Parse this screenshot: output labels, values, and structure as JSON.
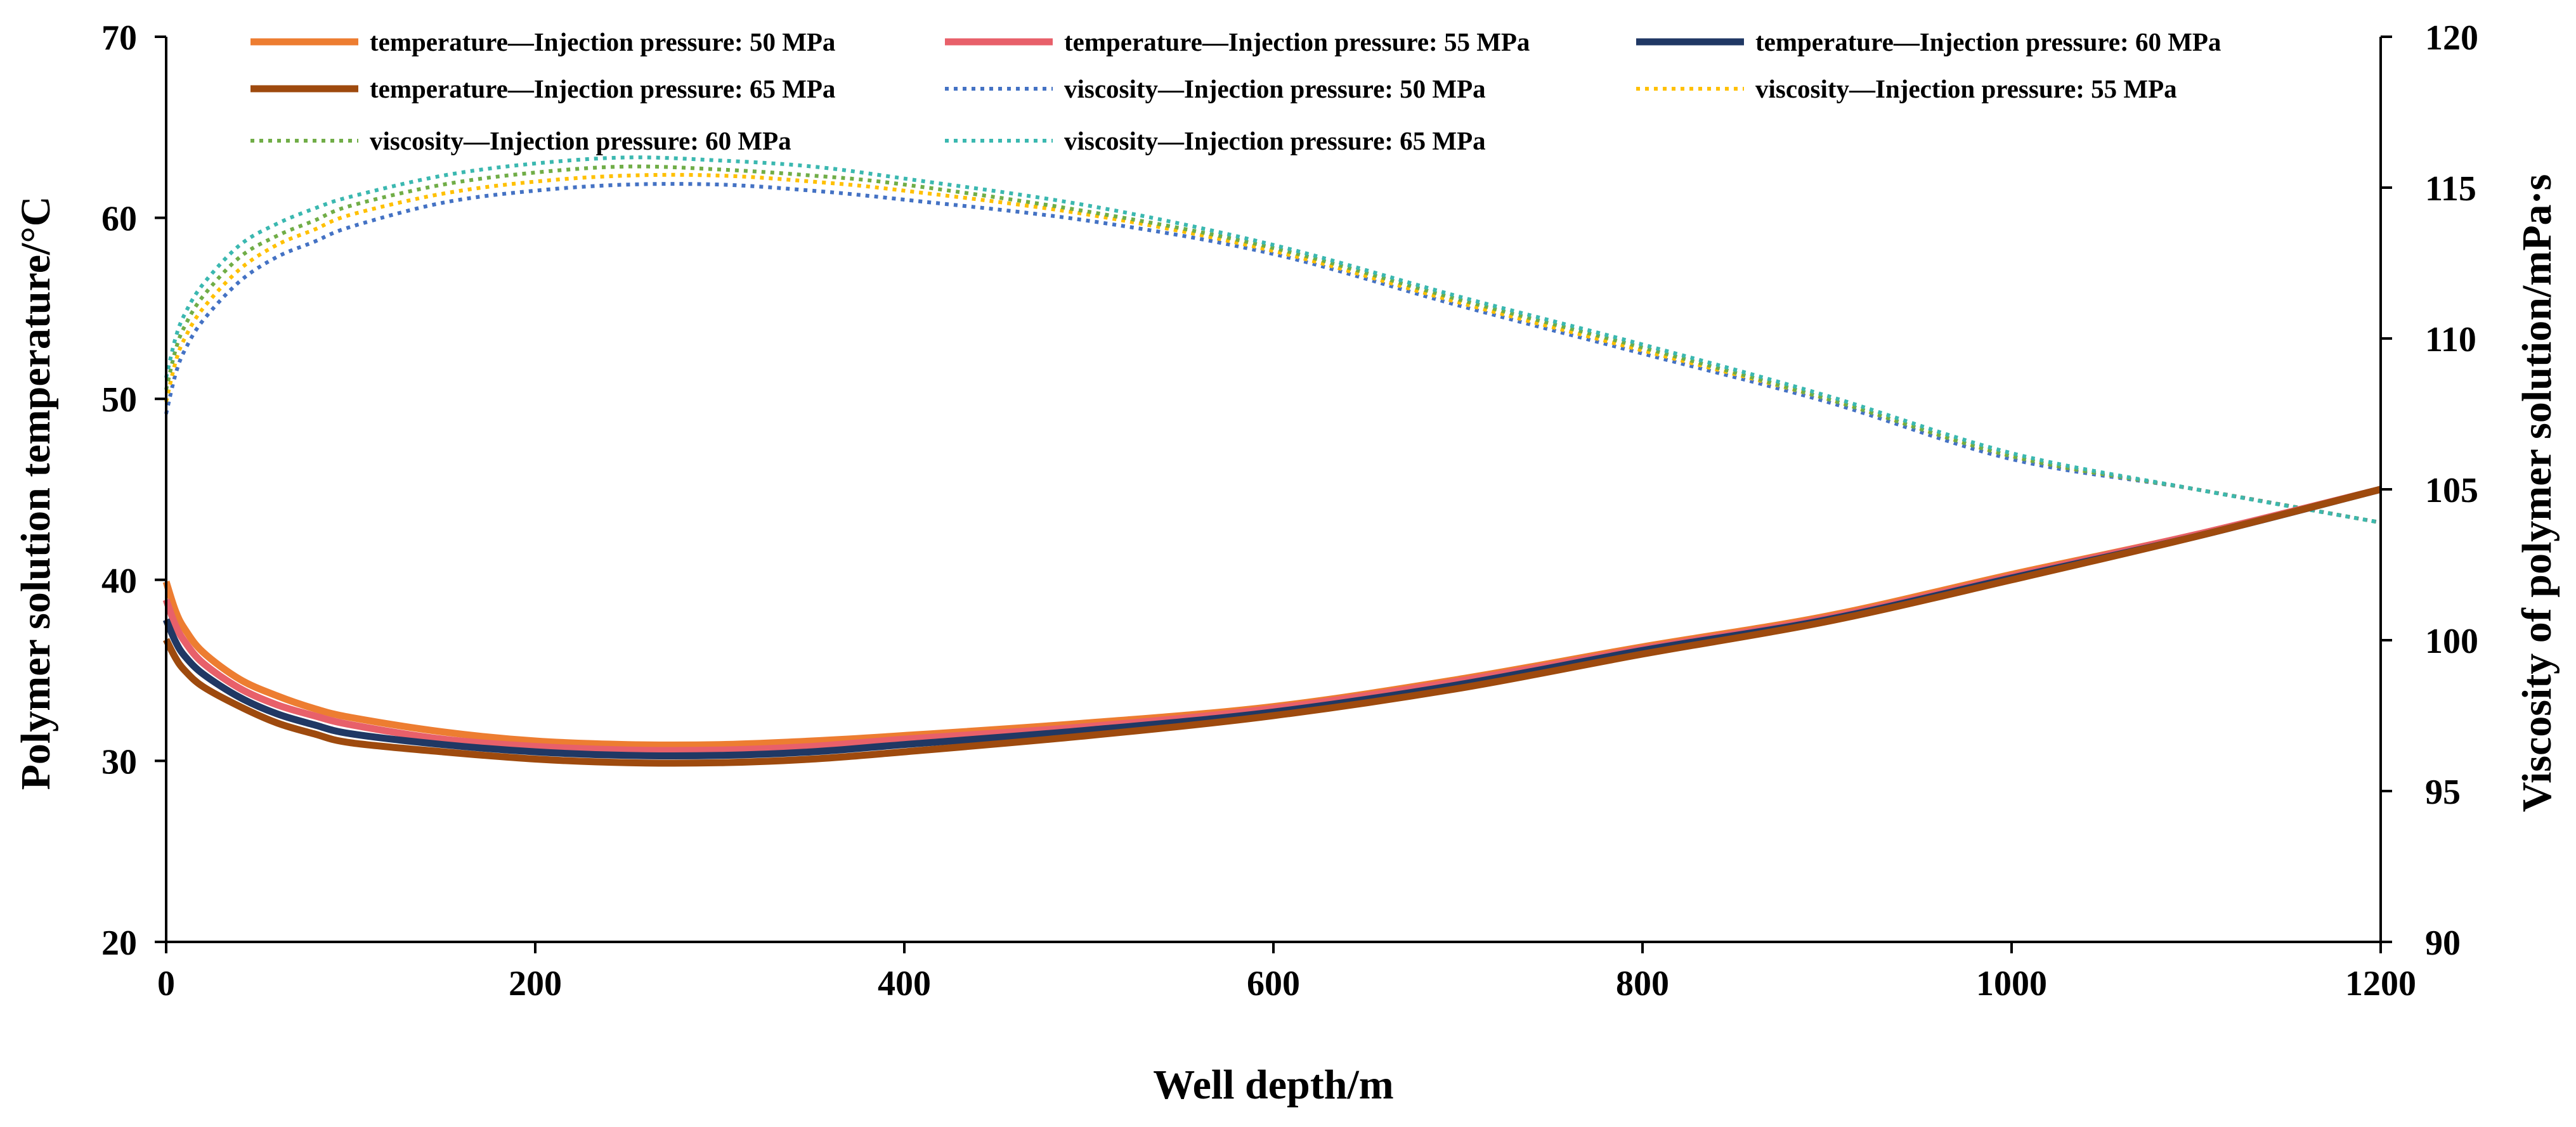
{
  "chart_data": {
    "type": "line",
    "title": "",
    "xlabel": "Well depth/m",
    "ylabel_left": "Polymer solution temperature/°C",
    "ylabel_right": "Viscosity of polymer solution/mPa·s",
    "xlim": [
      0,
      1200
    ],
    "ylim_left": [
      20,
      70
    ],
    "ylim_right": [
      90,
      120
    ],
    "x_ticks": [
      "0",
      "200",
      "400",
      "600",
      "800",
      "1000",
      "1200"
    ],
    "y_ticks_left": [
      "20",
      "30",
      "40",
      "50",
      "60",
      "70"
    ],
    "y_ticks_right": [
      "90",
      "95",
      "100",
      "105",
      "110",
      "115",
      "120"
    ],
    "grid": false,
    "legend_position": "top",
    "series": [
      {
        "name": "temperature—Injection pressure: 50 MPa",
        "axis": "left",
        "style": "solid",
        "color": "#ED7D31",
        "x": [
          0,
          5,
          10,
          20,
          40,
          60,
          80,
          100,
          150,
          200,
          250,
          300,
          350,
          400,
          500,
          600,
          700,
          800,
          900,
          1000,
          1100,
          1200
        ],
        "y": [
          39.9,
          38.3,
          37.3,
          36.0,
          34.5,
          33.6,
          32.9,
          32.4,
          31.6,
          31.1,
          30.9,
          30.9,
          31.1,
          31.4,
          32.1,
          33.0,
          34.5,
          36.3,
          38.0,
          40.3,
          42.5,
          45.0
        ]
      },
      {
        "name": "temperature—Injection pressure: 55 MPa",
        "axis": "left",
        "style": "solid",
        "color": "#E8606A",
        "x": [
          0,
          5,
          10,
          20,
          40,
          60,
          80,
          100,
          150,
          200,
          250,
          300,
          350,
          400,
          500,
          600,
          700,
          800,
          900,
          1000,
          1100,
          1200
        ],
        "y": [
          38.9,
          37.5,
          36.6,
          35.4,
          34.0,
          33.1,
          32.5,
          32.0,
          31.2,
          30.8,
          30.6,
          30.6,
          30.8,
          31.2,
          31.9,
          32.9,
          34.4,
          36.2,
          37.9,
          40.2,
          42.5,
          45.0
        ]
      },
      {
        "name": "temperature—Injection pressure: 60 MPa",
        "axis": "left",
        "style": "solid",
        "color": "#203864",
        "x": [
          0,
          5,
          10,
          20,
          40,
          60,
          80,
          100,
          150,
          200,
          250,
          300,
          350,
          400,
          500,
          600,
          700,
          800,
          900,
          1000,
          1100,
          1200
        ],
        "y": [
          37.8,
          36.6,
          35.8,
          34.8,
          33.5,
          32.6,
          32.0,
          31.5,
          30.9,
          30.5,
          30.3,
          30.3,
          30.5,
          30.9,
          31.7,
          32.7,
          34.2,
          36.1,
          37.8,
          40.1,
          42.4,
          45.0
        ]
      },
      {
        "name": "temperature—Injection pressure: 65 MPa",
        "axis": "left",
        "style": "solid",
        "color": "#9E4A0E",
        "x": [
          0,
          5,
          10,
          20,
          40,
          60,
          80,
          100,
          150,
          200,
          250,
          300,
          350,
          400,
          500,
          600,
          700,
          800,
          900,
          1000,
          1100,
          1200
        ],
        "y": [
          36.7,
          35.7,
          35.0,
          34.1,
          33.0,
          32.1,
          31.5,
          31.0,
          30.5,
          30.1,
          29.9,
          29.9,
          30.1,
          30.5,
          31.4,
          32.5,
          34.0,
          35.9,
          37.7,
          40.0,
          42.4,
          45.0
        ]
      },
      {
        "name": "viscosity—Injection pressure: 50 MPa",
        "axis": "right",
        "style": "dotted",
        "color": "#4472C4",
        "x": [
          0,
          5,
          10,
          20,
          40,
          60,
          80,
          100,
          150,
          200,
          250,
          300,
          350,
          400,
          500,
          600,
          700,
          800,
          900,
          1000,
          1100,
          1200
        ],
        "y": [
          107.5,
          108.8,
          109.6,
          110.6,
          111.9,
          112.7,
          113.2,
          113.7,
          114.5,
          114.9,
          115.1,
          115.1,
          114.9,
          114.6,
          113.9,
          112.8,
          111.1,
          109.5,
          107.9,
          106.0,
          105.0,
          103.9
        ]
      },
      {
        "name": "viscosity—Injection pressure: 55 MPa",
        "axis": "right",
        "style": "dotted",
        "color": "#FFC000",
        "x": [
          0,
          5,
          10,
          20,
          40,
          60,
          80,
          100,
          150,
          200,
          250,
          300,
          350,
          400,
          500,
          600,
          700,
          800,
          900,
          1000,
          1100,
          1200
        ],
        "y": [
          107.9,
          109.2,
          110.0,
          111.0,
          112.3,
          113.1,
          113.6,
          114.1,
          114.8,
          115.2,
          115.4,
          115.4,
          115.2,
          114.9,
          114.1,
          112.9,
          111.2,
          109.6,
          108.0,
          106.1,
          105.0,
          103.9
        ]
      },
      {
        "name": "viscosity—Injection pressure: 60 MPa",
        "axis": "right",
        "style": "dotted",
        "color": "#70AD47",
        "x": [
          0,
          5,
          10,
          20,
          40,
          60,
          80,
          100,
          150,
          200,
          250,
          300,
          350,
          400,
          500,
          600,
          700,
          800,
          900,
          1000,
          1100,
          1200
        ],
        "y": [
          108.3,
          109.6,
          110.4,
          111.4,
          112.7,
          113.4,
          113.9,
          114.4,
          115.1,
          115.5,
          115.7,
          115.6,
          115.4,
          115.1,
          114.2,
          113.0,
          111.3,
          109.7,
          108.0,
          106.1,
          105.0,
          103.9
        ]
      },
      {
        "name": "viscosity—Injection pressure: 65 MPa",
        "axis": "right",
        "style": "dotted",
        "color": "#3BB8B0",
        "x": [
          0,
          5,
          10,
          20,
          40,
          60,
          80,
          100,
          150,
          200,
          250,
          300,
          350,
          400,
          500,
          600,
          700,
          800,
          900,
          1000,
          1100,
          1200
        ],
        "y": [
          108.7,
          110.0,
          110.8,
          111.8,
          113.1,
          113.8,
          114.3,
          114.7,
          115.4,
          115.8,
          116.0,
          115.9,
          115.7,
          115.3,
          114.4,
          113.1,
          111.4,
          109.8,
          108.1,
          106.2,
          105.0,
          103.9
        ]
      }
    ]
  }
}
